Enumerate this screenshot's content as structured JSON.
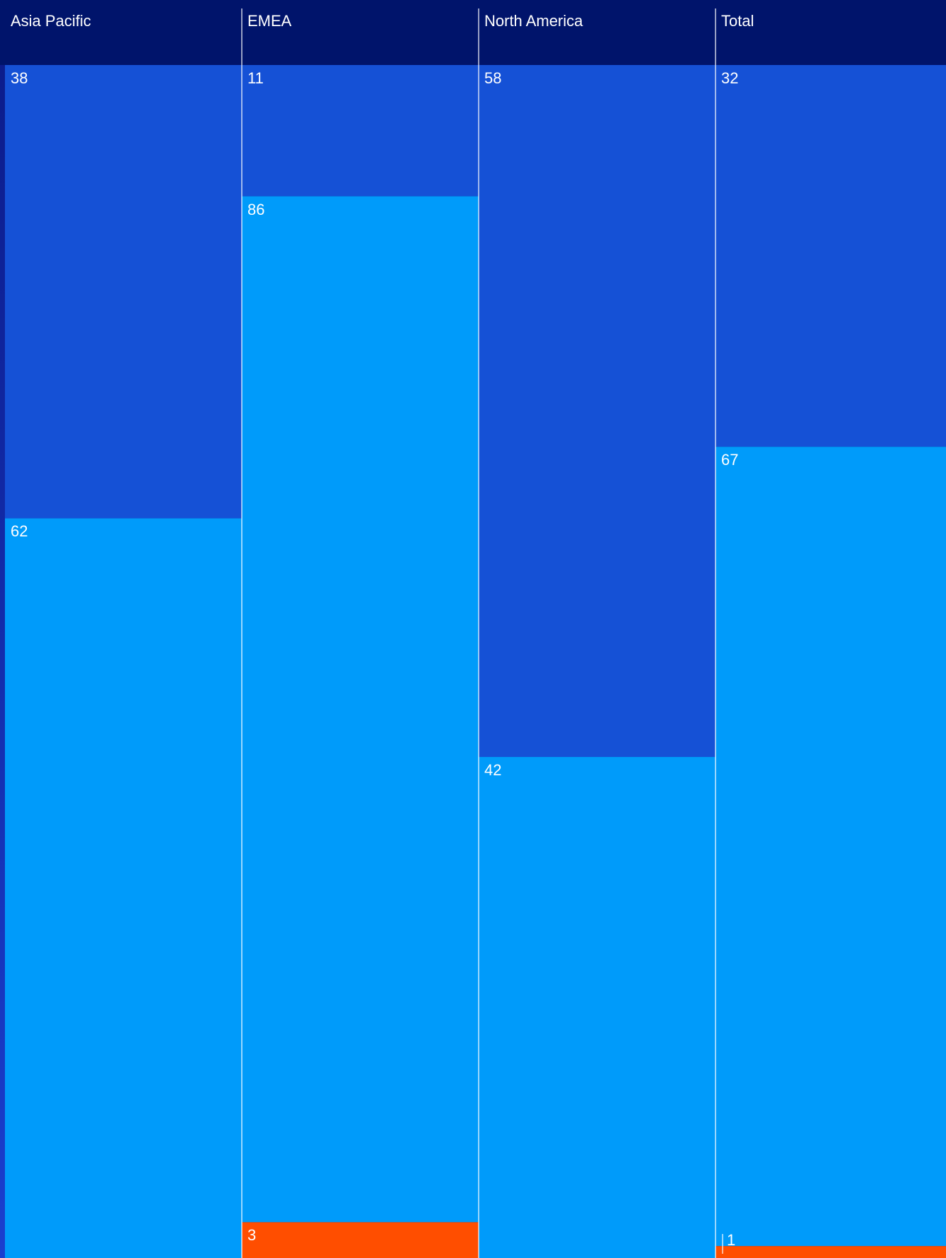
{
  "colors": {
    "background": "#00146b",
    "header": "#00146b",
    "series_dark_blue": "#1551d6",
    "series_light_blue": "#009bfa",
    "series_orange": "#ff4e00",
    "divider": "#ffffff",
    "text": "#ffffff"
  },
  "chart_data": {
    "type": "bar",
    "stacked": true,
    "orientation": "vertical-top-down",
    "categories": [
      "Asia Pacific",
      "EMEA",
      "North America",
      "Total"
    ],
    "series": [
      {
        "values": [
          38,
          11,
          58,
          32
        ],
        "color": "#1551d6"
      },
      {
        "values": [
          62,
          86,
          42,
          67
        ],
        "color": "#009bfa"
      },
      {
        "values": [
          0,
          3,
          0,
          1
        ],
        "color": "#ff4e00"
      }
    ],
    "labels": [
      [
        "38",
        "62",
        ""
      ],
      [
        "11",
        "86",
        "3"
      ],
      [
        "58",
        "42",
        ""
      ],
      [
        "32",
        "67",
        "1"
      ]
    ],
    "ylim": [
      0,
      100
    ],
    "grid": false,
    "legend": "none"
  }
}
